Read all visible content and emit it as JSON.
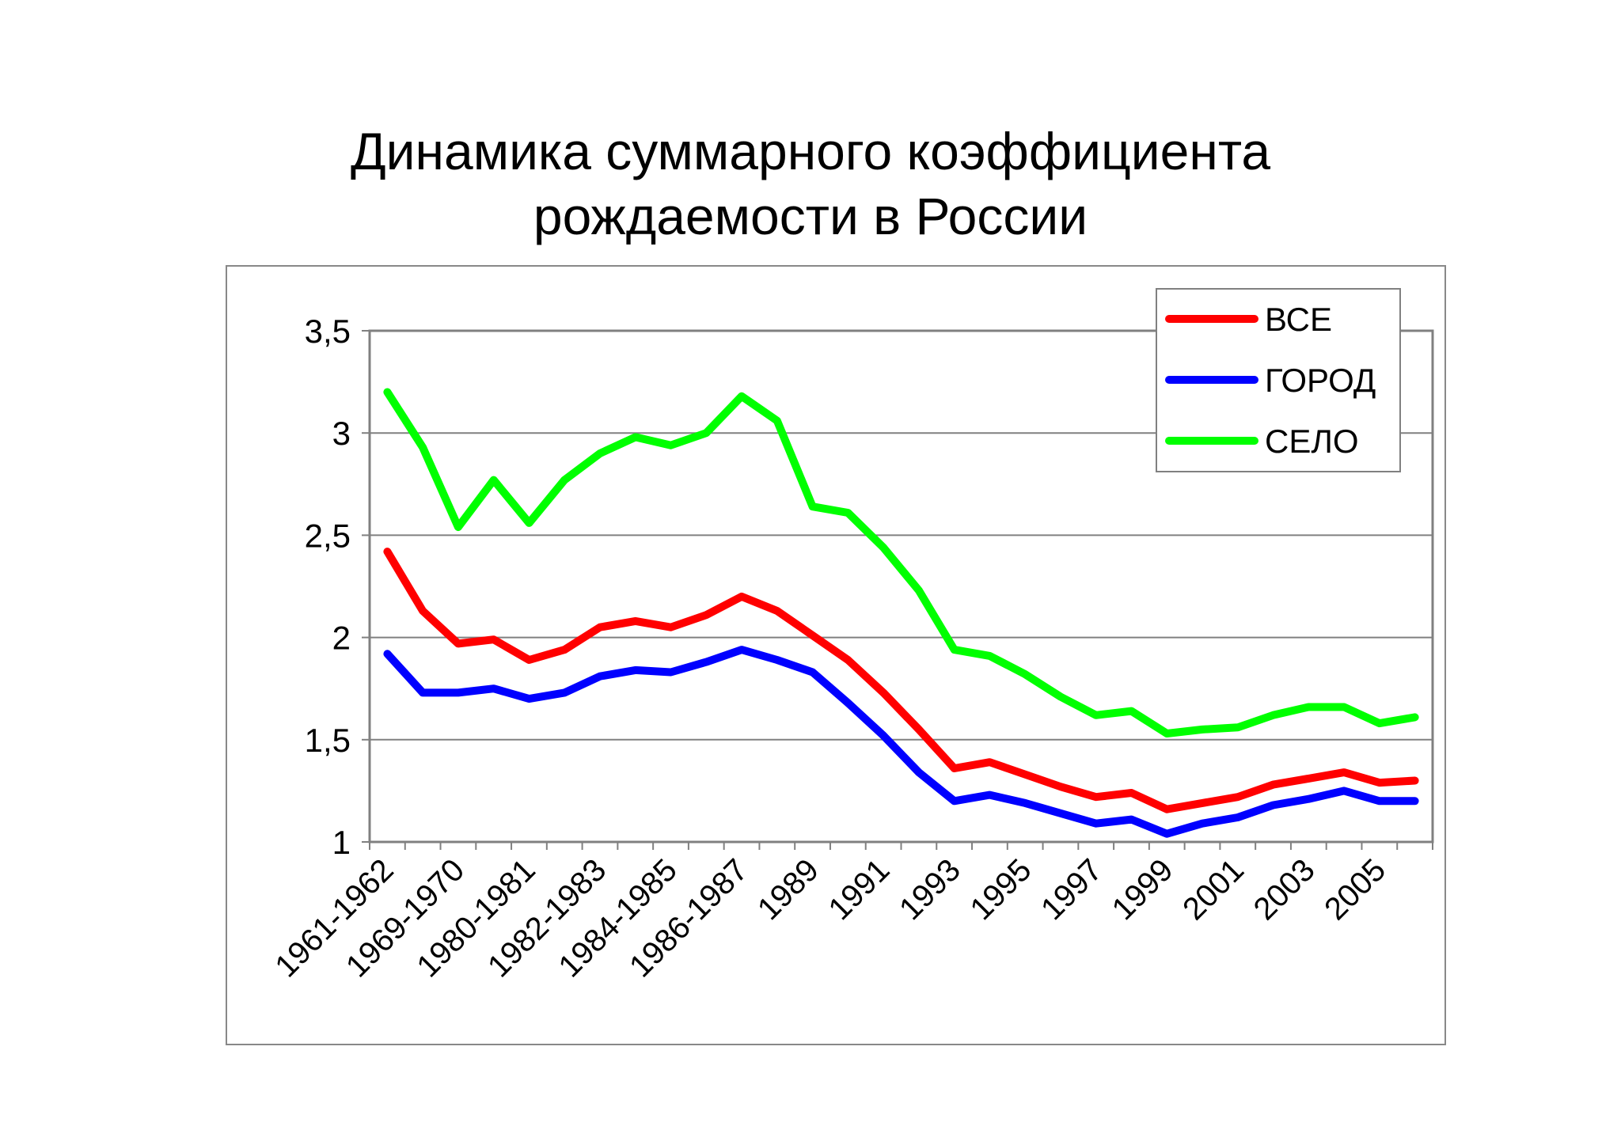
{
  "title_line1": "Динамика суммарного коэффициента",
  "title_line2": "рождаемости в России",
  "chart_data": {
    "type": "line",
    "title": "Динамика суммарного коэффициента рождаемости в России",
    "xlabel": "",
    "ylabel": "",
    "ylim": [
      1,
      3.5
    ],
    "y_ticks": [
      1,
      1.5,
      2,
      2.5,
      3,
      3.5
    ],
    "y_tick_labels": [
      "1",
      "1,5",
      "2",
      "2,5",
      "3",
      "3,5"
    ],
    "x_tick_labels": [
      "1961-1962",
      "1969-1970",
      "1980-1981",
      "1982-1983",
      "1984-1985",
      "1986-1987",
      "1989",
      "1991",
      "1993",
      "1995",
      "1997",
      "1999",
      "2001",
      "2003",
      "2005"
    ],
    "point_count": 30,
    "grid": true,
    "legend_position": "top-right",
    "series": [
      {
        "name": "ВСЕ",
        "color": "#ff0000",
        "values": [
          2.42,
          2.13,
          1.97,
          1.99,
          1.89,
          1.94,
          2.05,
          2.08,
          2.05,
          2.11,
          2.2,
          2.13,
          2.01,
          1.89,
          1.73,
          1.55,
          1.36,
          1.39,
          1.33,
          1.27,
          1.22,
          1.24,
          1.16,
          1.19,
          1.22,
          1.28,
          1.31,
          1.34,
          1.29,
          1.3
        ]
      },
      {
        "name": "ГОРОД",
        "color": "#0000ff",
        "values": [
          1.92,
          1.73,
          1.73,
          1.75,
          1.7,
          1.73,
          1.81,
          1.84,
          1.83,
          1.88,
          1.94,
          1.89,
          1.83,
          1.68,
          1.52,
          1.34,
          1.2,
          1.23,
          1.19,
          1.14,
          1.09,
          1.11,
          1.04,
          1.09,
          1.12,
          1.18,
          1.21,
          1.25,
          1.2,
          1.2
        ]
      },
      {
        "name": "СЕЛО",
        "color": "#00ff00",
        "values": [
          3.2,
          2.93,
          2.54,
          2.77,
          2.56,
          2.77,
          2.9,
          2.98,
          2.94,
          3.0,
          3.18,
          3.06,
          2.64,
          2.61,
          2.44,
          2.23,
          1.94,
          1.91,
          1.82,
          1.71,
          1.62,
          1.64,
          1.53,
          1.55,
          1.56,
          1.62,
          1.66,
          1.66,
          1.58,
          1.61
        ]
      }
    ]
  }
}
